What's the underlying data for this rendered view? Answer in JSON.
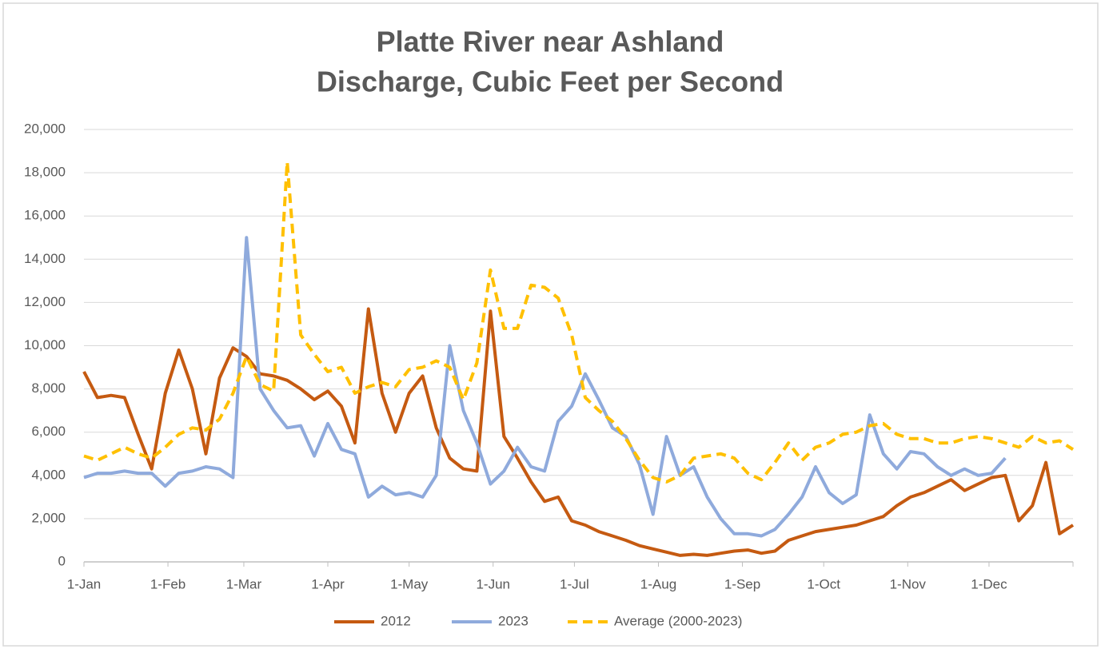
{
  "chart_data": {
    "type": "line",
    "title": "Platte River near Ashland",
    "subtitle": "Discharge, Cubic Feet per Second",
    "x": [
      0,
      5,
      10,
      15,
      20,
      25,
      30,
      35,
      40,
      45,
      50,
      55,
      60,
      65,
      70,
      75,
      80,
      85,
      90,
      95,
      100,
      105,
      110,
      115,
      120,
      125,
      130,
      135,
      140,
      145,
      150,
      155,
      160,
      165,
      170,
      175,
      180,
      185,
      190,
      195,
      200,
      205,
      210,
      215,
      220,
      225,
      230,
      235,
      240,
      245,
      250,
      255,
      260,
      265,
      270,
      275,
      280,
      285,
      290,
      295,
      300,
      305,
      310,
      315,
      320,
      325,
      330,
      335,
      340,
      345,
      350,
      355,
      360,
      365
    ],
    "xlim": [
      0,
      365
    ],
    "xticks": [
      {
        "value": 0,
        "label": "1-Jan"
      },
      {
        "value": 31,
        "label": "1-Feb"
      },
      {
        "value": 59,
        "label": "1-Mar"
      },
      {
        "value": 90,
        "label": "1-Apr"
      },
      {
        "value": 120,
        "label": "1-May"
      },
      {
        "value": 151,
        "label": "1-Jun"
      },
      {
        "value": 181,
        "label": "1-Jul"
      },
      {
        "value": 212,
        "label": "1-Aug"
      },
      {
        "value": 243,
        "label": "1-Sep"
      },
      {
        "value": 273,
        "label": "1-Oct"
      },
      {
        "value": 304,
        "label": "1-Nov"
      },
      {
        "value": 334,
        "label": "1-Dec"
      }
    ],
    "ylim": [
      0,
      20000
    ],
    "yticks": [
      0,
      {
        "value": 2000,
        "label": "2,000"
      },
      {
        "value": 4000,
        "label": "4,000"
      },
      {
        "value": 6000,
        "label": "6,000"
      },
      {
        "value": 8000,
        "label": "8,000"
      },
      {
        "value": 10000,
        "label": "10,000"
      },
      {
        "value": 12000,
        "label": "12,000"
      },
      {
        "value": 14000,
        "label": "14,000"
      },
      {
        "value": 16000,
        "label": "16,000"
      },
      {
        "value": 18000,
        "label": "18,000"
      },
      {
        "value": 20000,
        "label": "20,000"
      }
    ],
    "grid": true,
    "legend": "bottom",
    "series": [
      {
        "name": "2012",
        "color": "#c55a11",
        "dashed": false,
        "values": [
          8800,
          7600,
          7700,
          7600,
          5900,
          4300,
          7800,
          9800,
          8000,
          5000,
          8500,
          9900,
          9500,
          8700,
          8600,
          8400,
          8000,
          7500,
          7900,
          7200,
          5500,
          11700,
          7800,
          6000,
          7800,
          8600,
          6200,
          4800,
          4300,
          4200,
          11600,
          5800,
          4800,
          3700,
          2800,
          3000,
          1900,
          1700,
          1400,
          1200,
          1000,
          750,
          600,
          450,
          300,
          350,
          300,
          400,
          500,
          550,
          400,
          500,
          1000,
          1200,
          1400,
          1500,
          1600,
          1700,
          1900,
          2100,
          2600,
          3000,
          3200,
          3500,
          3800,
          3300,
          3600,
          3900,
          4000,
          1900,
          2600,
          4600,
          1300,
          1700
        ]
      },
      {
        "name": "2023",
        "color": "#8faadc",
        "dashed": false,
        "values": [
          3900,
          4100,
          4100,
          4200,
          4100,
          4100,
          3500,
          4100,
          4200,
          4400,
          4300,
          3900,
          15000,
          8000,
          7000,
          6200,
          6300,
          4900,
          6400,
          5200,
          5000,
          3000,
          3500,
          3100,
          3200,
          3000,
          4000,
          10000,
          7000,
          5500,
          3600,
          4200,
          5300,
          4400,
          4200,
          6500,
          7200,
          8700,
          7500,
          6200,
          5800,
          4500,
          2200,
          5800,
          4000,
          4400,
          3000,
          2000,
          1300,
          1300,
          1200,
          1500,
          2200,
          3000,
          4400,
          3200,
          2700,
          3100,
          6800,
          5000,
          4300,
          5100,
          5000,
          4400,
          4000,
          4300,
          4000,
          4100,
          4800,
          null,
          null,
          null,
          null,
          null
        ]
      },
      {
        "name": "Average (2000-2023)",
        "color": "#ffc000",
        "dashed": true,
        "values": [
          4900,
          4700,
          5000,
          5300,
          5000,
          4800,
          5300,
          5900,
          6200,
          6100,
          6600,
          7800,
          9500,
          8200,
          7900,
          18500,
          10500,
          9600,
          8800,
          9000,
          7800,
          8100,
          8300,
          8100,
          8900,
          9000,
          9300,
          9000,
          7500,
          9200,
          13500,
          10800,
          10800,
          12800,
          12700,
          12200,
          10500,
          7600,
          7000,
          6500,
          5700,
          4700,
          3900,
          3700,
          4000,
          4800,
          4900,
          5000,
          4800,
          4100,
          3800,
          4600,
          5500,
          4700,
          5300,
          5500,
          5900,
          6000,
          6300,
          6400,
          5900,
          5700,
          5700,
          5500,
          5500,
          5700,
          5800,
          5700,
          5500,
          5300,
          5800,
          5500,
          5600,
          5200
        ]
      }
    ]
  }
}
